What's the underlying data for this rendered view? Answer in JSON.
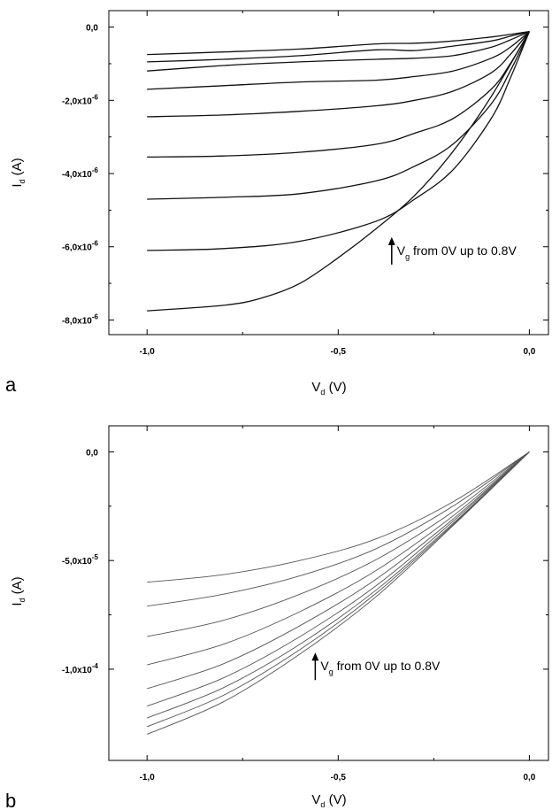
{
  "chart_data": [
    {
      "panel": "a",
      "type": "line",
      "xlabel": "V",
      "xlabel_sub": "d",
      "xlabel_unit": " (V)",
      "ylabel": "I",
      "ylabel_sub": "d",
      "ylabel_unit": " (A)",
      "xlim": [
        -1.1,
        0.05
      ],
      "ylim": [
        -8.4e-06,
        4.5e-07
      ],
      "x_ticks": [
        -1.0,
        -0.5,
        0.0
      ],
      "x_tick_labels": [
        "-1,0",
        "-0,5",
        "0,0"
      ],
      "y_ticks": [
        0,
        -2e-06,
        -4e-06,
        -6e-06,
        -8e-06
      ],
      "y_tick_labels": [
        {
          "mant": "0,0",
          "exp": ""
        },
        {
          "mant": "-2,0x10",
          "exp": "-6"
        },
        {
          "mant": "-4,0x10",
          "exp": "-6"
        },
        {
          "mant": "-6,0x10",
          "exp": "-6"
        },
        {
          "mant": "-8,0x10",
          "exp": "-6"
        }
      ],
      "annotation": {
        "main": "V",
        "sub": "g",
        "rest": " from 0V up to 0.8V",
        "x": -0.36,
        "y": -6.1e-06
      },
      "series": [
        {
          "x": [
            -1.0,
            -0.8,
            -0.6,
            -0.4,
            -0.3,
            -0.2,
            -0.1,
            -0.05,
            0.0
          ],
          "y": [
            -7.5e-07,
            -6.8e-07,
            -6e-07,
            -4.6e-07,
            -4.4e-07,
            -3.8e-07,
            -2.7e-07,
            -2e-07,
            -1.2e-07
          ]
        },
        {
          "x": [
            -1.0,
            -0.8,
            -0.6,
            -0.4,
            -0.3,
            -0.2,
            -0.1,
            -0.05,
            0.0
          ],
          "y": [
            -9.5e-07,
            -8.8e-07,
            -7.8e-07,
            -6.2e-07,
            -6.4e-07,
            -5.2e-07,
            -3.8e-07,
            -2.5e-07,
            -1.2e-07
          ]
        },
        {
          "x": [
            -1.0,
            -0.8,
            -0.6,
            -0.4,
            -0.3,
            -0.2,
            -0.1,
            -0.05,
            0.0
          ],
          "y": [
            -1.2e-06,
            -1.05e-06,
            -9.5e-07,
            -8.8e-07,
            -8.5e-07,
            -7.8e-07,
            -5.5e-07,
            -3.5e-07,
            -1.2e-07
          ]
        },
        {
          "x": [
            -1.0,
            -0.8,
            -0.6,
            -0.4,
            -0.3,
            -0.2,
            -0.1,
            -0.05,
            0.0
          ],
          "y": [
            -1.7e-06,
            -1.6e-06,
            -1.5e-06,
            -1.45e-06,
            -1.35e-06,
            -1.2e-06,
            -8.5e-07,
            -5.5e-07,
            -1.2e-07
          ]
        },
        {
          "x": [
            -1.0,
            -0.8,
            -0.6,
            -0.4,
            -0.3,
            -0.2,
            -0.1,
            -0.05,
            0.0
          ],
          "y": [
            -2.45e-06,
            -2.4e-06,
            -2.3e-06,
            -2.15e-06,
            -2e-06,
            -1.75e-06,
            -1.25e-06,
            -7.5e-07,
            -1.2e-07
          ]
        },
        {
          "x": [
            -1.0,
            -0.8,
            -0.6,
            -0.4,
            -0.3,
            -0.2,
            -0.1,
            -0.05,
            0.0
          ],
          "y": [
            -3.55e-06,
            -3.52e-06,
            -3.42e-06,
            -3.2e-06,
            -2.9e-06,
            -2.5e-06,
            -1.7e-06,
            -1e-06,
            -1.2e-07
          ]
        },
        {
          "x": [
            -1.0,
            -0.8,
            -0.6,
            -0.4,
            -0.3,
            -0.2,
            -0.1,
            -0.05,
            0.0
          ],
          "y": [
            -4.7e-06,
            -4.65e-06,
            -4.55e-06,
            -4.2e-06,
            -3.8e-06,
            -3.2e-06,
            -2.1e-06,
            -1.2e-06,
            -1.2e-07
          ]
        },
        {
          "x": [
            -1.0,
            -0.8,
            -0.6,
            -0.4,
            -0.3,
            -0.2,
            -0.1,
            -0.05,
            0.0
          ],
          "y": [
            -6.1e-06,
            -6.05e-06,
            -5.85e-06,
            -5.3e-06,
            -4.7e-06,
            -3.9e-06,
            -2.5e-06,
            -1.4e-06,
            -1.2e-07
          ]
        },
        {
          "x": [
            -1.0,
            -0.8,
            -0.7,
            -0.6,
            -0.5,
            -0.4,
            -0.3,
            -0.2,
            -0.1,
            0.0
          ],
          "y": [
            -7.75e-06,
            -7.6e-06,
            -7.4e-06,
            -7e-06,
            -6.3e-06,
            -5.5e-06,
            -4.6e-06,
            -3.4e-06,
            -1.9e-06,
            -1.2e-07
          ]
        }
      ]
    },
    {
      "panel": "b",
      "type": "line",
      "xlabel": "V",
      "xlabel_sub": "d",
      "xlabel_unit": " (V)",
      "ylabel": "I",
      "ylabel_sub": "d",
      "ylabel_unit": " (A)",
      "xlim": [
        -1.1,
        0.05
      ],
      "ylim": [
        -0.000142,
        1.2e-05
      ],
      "x_ticks": [
        -1.0,
        -0.5,
        0.0
      ],
      "x_tick_labels": [
        "-1,0",
        "-0,5",
        "0,0"
      ],
      "y_ticks": [
        0,
        -5e-05,
        -0.0001
      ],
      "y_tick_labels": [
        {
          "mant": "0,0",
          "exp": ""
        },
        {
          "mant": "-5,0x10",
          "exp": "-5"
        },
        {
          "mant": "-1,0x10",
          "exp": "-4"
        }
      ],
      "annotation": {
        "main": "V",
        "sub": "g",
        "rest": " from 0V up to 0.8V",
        "x": -0.56,
        "y": -9.85e-05
      },
      "series": [
        {
          "x": [
            -1.0,
            -0.8,
            -0.6,
            -0.4,
            -0.2,
            0.0
          ],
          "y": [
            -6e-05,
            -5.65e-05,
            -5e-05,
            -4e-05,
            -2.3e-05,
            0.0
          ]
        },
        {
          "x": [
            -1.0,
            -0.8,
            -0.6,
            -0.4,
            -0.2,
            0.0
          ],
          "y": [
            -7.1e-05,
            -6.55e-05,
            -5.7e-05,
            -4.45e-05,
            -2.5e-05,
            0.0
          ]
        },
        {
          "x": [
            -1.0,
            -0.8,
            -0.6,
            -0.4,
            -0.2,
            0.0
          ],
          "y": [
            -8.5e-05,
            -7.75e-05,
            -6.55e-05,
            -4.95e-05,
            -2.75e-05,
            0.0
          ]
        },
        {
          "x": [
            -1.0,
            -0.8,
            -0.6,
            -0.4,
            -0.2,
            0.0
          ],
          "y": [
            -9.8e-05,
            -8.85e-05,
            -7.35e-05,
            -5.45e-05,
            -2.95e-05,
            0.0
          ]
        },
        {
          "x": [
            -1.0,
            -0.8,
            -0.6,
            -0.4,
            -0.2,
            0.0
          ],
          "y": [
            -0.000109,
            -9.75e-05,
            -8e-05,
            -5.85e-05,
            -3.1e-05,
            0.0
          ]
        },
        {
          "x": [
            -1.0,
            -0.8,
            -0.6,
            -0.4,
            -0.2,
            0.0
          ],
          "y": [
            -0.000117,
            -0.000104,
            -8.5e-05,
            -6.15e-05,
            -3.2e-05,
            0.0
          ]
        },
        {
          "x": [
            -1.0,
            -0.8,
            -0.6,
            -0.4,
            -0.2,
            0.0
          ],
          "y": [
            -0.0001225,
            -0.0001085,
            -8.85e-05,
            -6.35e-05,
            -3.3e-05,
            0.0
          ]
        },
        {
          "x": [
            -1.0,
            -0.8,
            -0.6,
            -0.4,
            -0.2,
            0.0
          ],
          "y": [
            -0.0001265,
            -0.000112,
            -9.1e-05,
            -6.5e-05,
            -3.35e-05,
            0.0
          ]
        },
        {
          "x": [
            -1.0,
            -0.8,
            -0.6,
            -0.4,
            -0.2,
            0.0
          ],
          "y": [
            -0.00013,
            -0.000115,
            -9.3e-05,
            -6.65e-05,
            -3.4e-05,
            0.0
          ]
        }
      ]
    }
  ]
}
